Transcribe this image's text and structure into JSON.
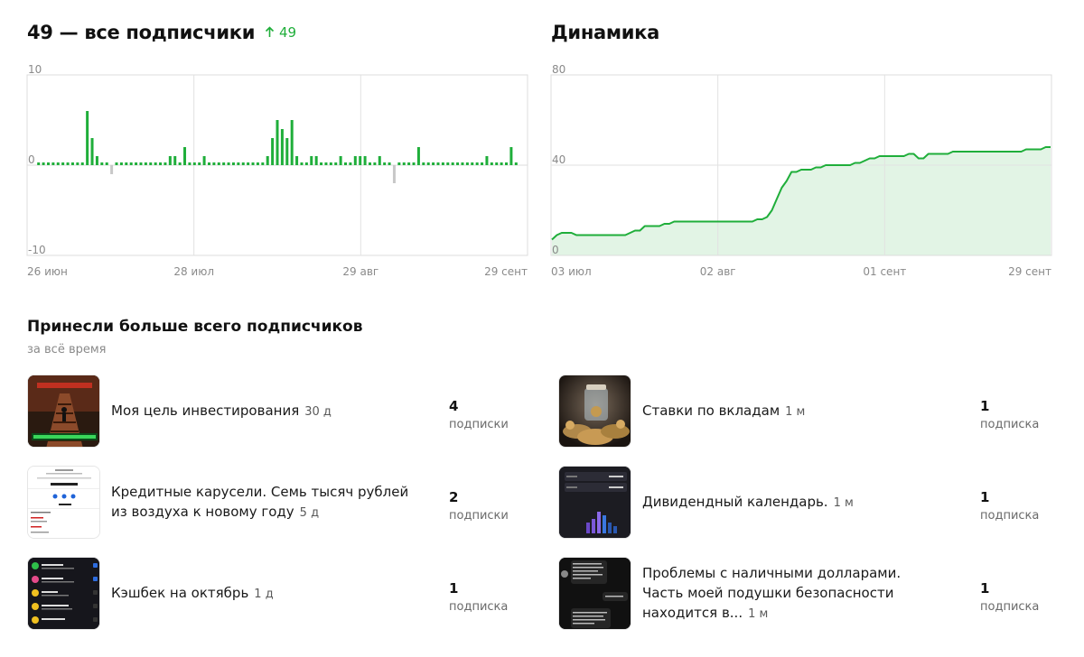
{
  "subscribers": {
    "title": "49 — все подписчики",
    "delta": "49",
    "color_up": "#1fae3a",
    "color_down": "#c8c8c8"
  },
  "dynamics": {
    "title": "Динамика"
  },
  "chart_data": [
    {
      "type": "bar",
      "ylim": [
        -10,
        10
      ],
      "yticks": [
        "10",
        "0",
        "-10"
      ],
      "xticks": [
        "26 июн",
        "28 июл",
        "29 авг",
        "29 сент"
      ],
      "grid": true,
      "values": [
        0.3,
        0.3,
        0.3,
        0.3,
        0.3,
        0.3,
        0.3,
        0.3,
        0.3,
        0.3,
        6,
        3,
        1,
        0.3,
        0.3,
        -1,
        0.3,
        0.3,
        0.3,
        0.3,
        0.3,
        0.3,
        0.3,
        0.3,
        0.3,
        0.3,
        0.3,
        1,
        1,
        0.3,
        2,
        0.3,
        0.3,
        0.3,
        1,
        0.3,
        0.3,
        0.3,
        0.3,
        0.3,
        0.3,
        0.3,
        0.3,
        0.3,
        0.3,
        0.3,
        0.3,
        1,
        3,
        5,
        4,
        3,
        5,
        1,
        0.3,
        0.3,
        1,
        1,
        0.3,
        0.3,
        0.3,
        0.3,
        1,
        0.3,
        0.3,
        1,
        1,
        1,
        0.3,
        0.3,
        1,
        0.3,
        0.3,
        -2,
        0.3,
        0.3,
        0.3,
        0.3,
        2,
        0.3,
        0.3,
        0.3,
        0.3,
        0.3,
        0.3,
        0.3,
        0.3,
        0.3,
        0.3,
        0.3,
        0.3,
        0.3,
        1,
        0.3,
        0.3,
        0.3,
        0.3,
        2,
        0.3
      ]
    },
    {
      "type": "area",
      "ylim": [
        0,
        80
      ],
      "yticks": [
        "80",
        "40",
        "0"
      ],
      "xticks": [
        "03 июл",
        "02 авг",
        "01 сент",
        "29 сент"
      ],
      "grid": true,
      "values": [
        7,
        9,
        10,
        10,
        10,
        9,
        9,
        9,
        9,
        9,
        9,
        9,
        9,
        9,
        9,
        9,
        10,
        11,
        11,
        13,
        13,
        13,
        13,
        14,
        14,
        15,
        15,
        15,
        15,
        15,
        15,
        15,
        15,
        15,
        15,
        15,
        15,
        15,
        15,
        15,
        15,
        15,
        16,
        16,
        17,
        20,
        25,
        30,
        33,
        37,
        37,
        38,
        38,
        38,
        39,
        39,
        40,
        40,
        40,
        40,
        40,
        40,
        41,
        41,
        42,
        43,
        43,
        44,
        44,
        44,
        44,
        44,
        44,
        45,
        45,
        43,
        43,
        45,
        45,
        45,
        45,
        45,
        46,
        46,
        46,
        46,
        46,
        46,
        46,
        46,
        46,
        46,
        46,
        46,
        46,
        46,
        46,
        47,
        47,
        47,
        47,
        48,
        48
      ]
    }
  ],
  "top": {
    "title": "Принесли больше всего подписчиков",
    "subtitle": "за всё время",
    "posts": [
      {
        "text": "Моя цель инвестирования",
        "age": "30 д",
        "num": "4",
        "unit": "подписки"
      },
      {
        "text": "Ставки по вкладам",
        "age": "1 м",
        "num": "1",
        "unit": "подписка"
      },
      {
        "text": "Кредитные карусели. Семь тысяч рублей из воздуха к новому году",
        "age": "5 д",
        "num": "2",
        "unit": "подписки"
      },
      {
        "text": "Дивидендный календарь.",
        "age": "1 м",
        "num": "1",
        "unit": "подписка"
      },
      {
        "text": "Кэшбек на октябрь",
        "age": "1 д",
        "num": "1",
        "unit": "подписка"
      },
      {
        "text": "Проблемы с наличными долларами. Часть моей подушки безопасности находится в...",
        "age": "1 м",
        "num": "1",
        "unit": "подписка"
      }
    ]
  }
}
